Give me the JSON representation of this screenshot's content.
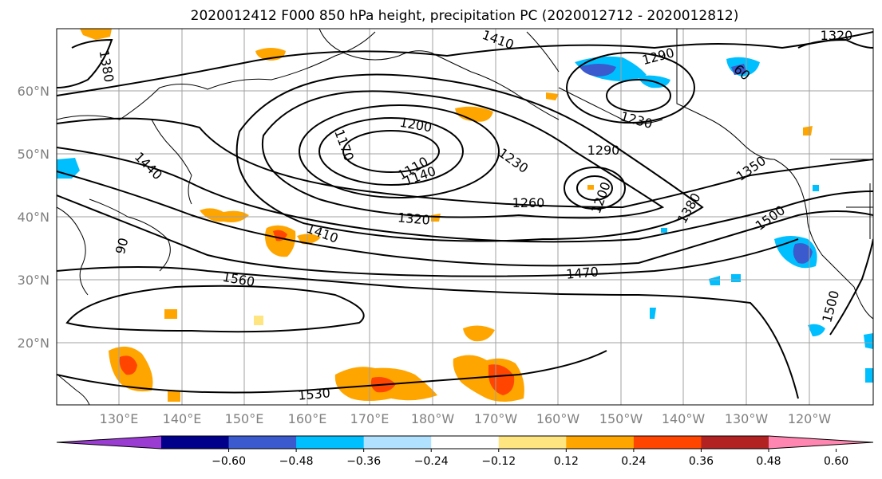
{
  "title": "2020012412 F000 850 hPa height, precipitation PC (2020012712 - 2020012812)",
  "lat_labels": [
    "60°N",
    "50°N",
    "40°N",
    "30°N",
    "20°N"
  ],
  "lon_labels": [
    "130°E",
    "140°E",
    "150°E",
    "160°E",
    "170°E",
    "180°W",
    "170°W",
    "160°W",
    "150°W",
    "140°W",
    "130°W",
    "120°W"
  ],
  "colorbar": {
    "ticks": [
      "−0.60",
      "−0.48",
      "−0.36",
      "−0.24",
      "−0.12",
      "0.12",
      "0.24",
      "0.36",
      "0.48",
      "0.60"
    ],
    "colors": [
      "#9a3cd2",
      "#00008b",
      "#3a5acd",
      "#00bfff",
      "#b0e2ff",
      "#ffffff",
      "#ffe57f",
      "#ffa500",
      "#ff4500",
      "#b22222",
      "#ff86b0"
    ]
  },
  "contour_labels": [
    "1410",
    "1380",
    "1290",
    "1320",
    "60",
    "1230",
    "1200",
    "1170",
    "1290",
    "1440",
    "1110",
    "1140",
    "1230",
    "1350",
    "1260",
    "1200",
    "1380",
    "1320",
    "1410",
    "1500",
    "90",
    "1470",
    "1560",
    "1500",
    "1530"
  ],
  "land_color": "#ffffff",
  "line_color": "#000000",
  "grid_color": "#a0a0a0"
}
